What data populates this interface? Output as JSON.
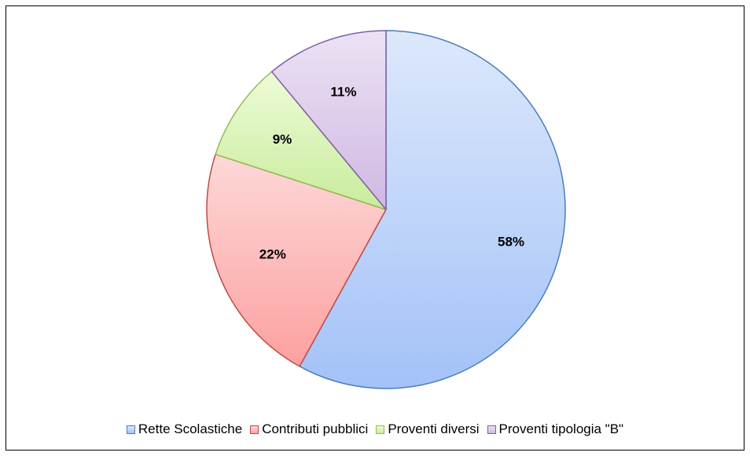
{
  "chart_data": {
    "type": "pie",
    "title": "",
    "categories": [
      "Rette Scolastiche",
      "Contributi pubblici",
      "Proventi diversi",
      "Proventi tipologia \"B\""
    ],
    "values": [
      58,
      22,
      9,
      11
    ],
    "value_labels": [
      "58%",
      "22%",
      "9%",
      "11%"
    ],
    "start_angle_deg": 0,
    "direction": "clockwise",
    "legend_position": "bottom",
    "colors": {
      "fill_top": [
        "#dde8fb",
        "#fdd8d8",
        "#eefbd8",
        "#ece2f4"
      ],
      "fill_bottom": [
        "#a3c2f8",
        "#fda0a0",
        "#c8ec9c",
        "#cfb8e3"
      ],
      "stroke": [
        "#4a7ebb",
        "#be4b48",
        "#98b954",
        "#7d60a0"
      ]
    }
  }
}
